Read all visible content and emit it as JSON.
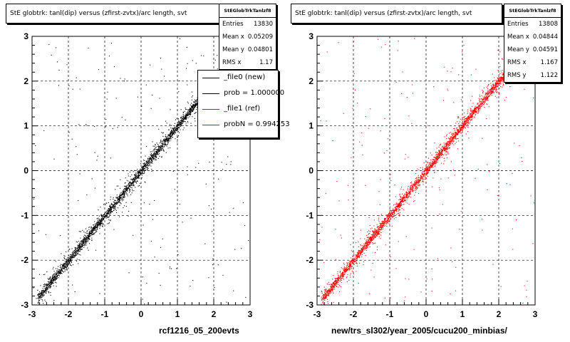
{
  "chart_data": [
    {
      "type": "scatter",
      "title": "StE globtrk: tanl(dip) versus (zfirst-zvtx)/arc length, svt",
      "xlabel": "rcf1216_05_200evts",
      "ylabel": "",
      "xlim": [
        -3,
        3
      ],
      "ylim": [
        -3,
        3
      ],
      "grid": true,
      "x_ticks": [
        "-3",
        "-2",
        "-1",
        "0",
        "1",
        "2",
        "3"
      ],
      "y_ticks": [
        "-3",
        "-2",
        "-1",
        "0",
        "1",
        "2",
        "3"
      ],
      "marker_color": "#000000",
      "relation": "y ≈ x, dense diagonal band",
      "stats": {
        "name": "StEGlobTrkTanlzf8",
        "rows": [
          {
            "label": "Entries",
            "value": "13830"
          },
          {
            "label": "Mean x",
            "value": "0.05209"
          },
          {
            "label": "Mean y",
            "value": "0.04801"
          },
          {
            "label": "RMS x",
            "value": "1.17"
          }
        ]
      },
      "legend": {
        "placement": "top-right",
        "entries": [
          {
            "label": "_file0 (new)",
            "color": "#000000"
          },
          {
            "label": "prob = 1.000000",
            "color": "#000000"
          },
          {
            "label": "_file1 (ref)",
            "color": "#ff0000"
          },
          {
            "label": "probN = 0.994253",
            "color": "#ff0000"
          }
        ]
      }
    },
    {
      "type": "scatter",
      "title": "StE globtrk: tanl(dip) versus (zfirst-zvtx)/arc length, svt",
      "xlabel": "new/trs_sl302/year_2005/cucu200_minbias/",
      "ylabel": "",
      "xlim": [
        -3,
        3
      ],
      "ylim": [
        -3,
        3
      ],
      "grid": true,
      "x_ticks": [
        "-3",
        "-2",
        "-1",
        "0",
        "1",
        "2",
        "3"
      ],
      "y_ticks": [
        "-3",
        "-2",
        "-1",
        "0",
        "1",
        "2",
        "3"
      ],
      "marker_color": "#ff0000",
      "relation": "y ≈ x, dense diagonal band",
      "stats": {
        "name": "StEGlobTrkTanlzf8",
        "rows": [
          {
            "label": "Entries",
            "value": "13808"
          },
          {
            "label": "Mean x",
            "value": "0.04844"
          },
          {
            "label": "Mean y",
            "value": "0.04591"
          },
          {
            "label": "RMS x",
            "value": "1.167"
          },
          {
            "label": "RMS y",
            "value": "1.122"
          }
        ]
      }
    }
  ]
}
